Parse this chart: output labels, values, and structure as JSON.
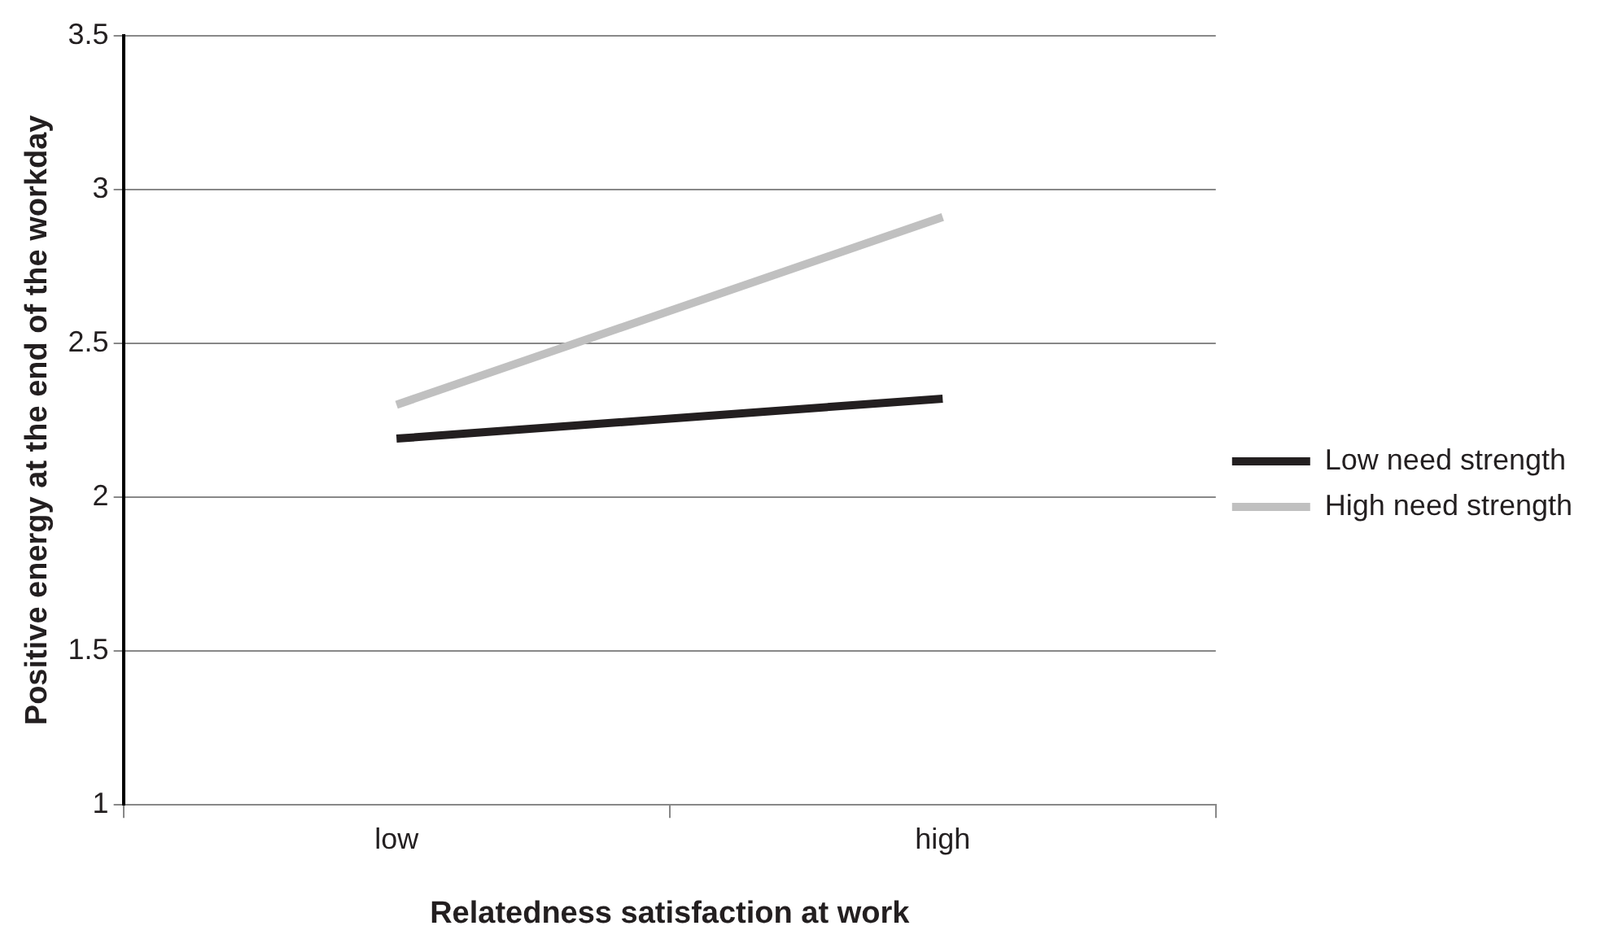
{
  "chart_data": {
    "type": "line",
    "xlabel": "Relatedness satisfaction at work",
    "ylabel": "Positive energy at the end of the workday",
    "categories": [
      "low",
      "high"
    ],
    "series": [
      {
        "name": "Low need strength",
        "color": "#231f20",
        "values": [
          2.19,
          2.32
        ]
      },
      {
        "name": "High need strength",
        "color": "#c0c0c0",
        "values": [
          2.3,
          2.91
        ]
      }
    ],
    "ylim": [
      1,
      3.5
    ],
    "yticks": [
      1,
      1.5,
      2,
      2.5,
      3,
      3.5
    ],
    "grid": "y",
    "legend": "right",
    "marker": "none",
    "line_style": "solid"
  }
}
